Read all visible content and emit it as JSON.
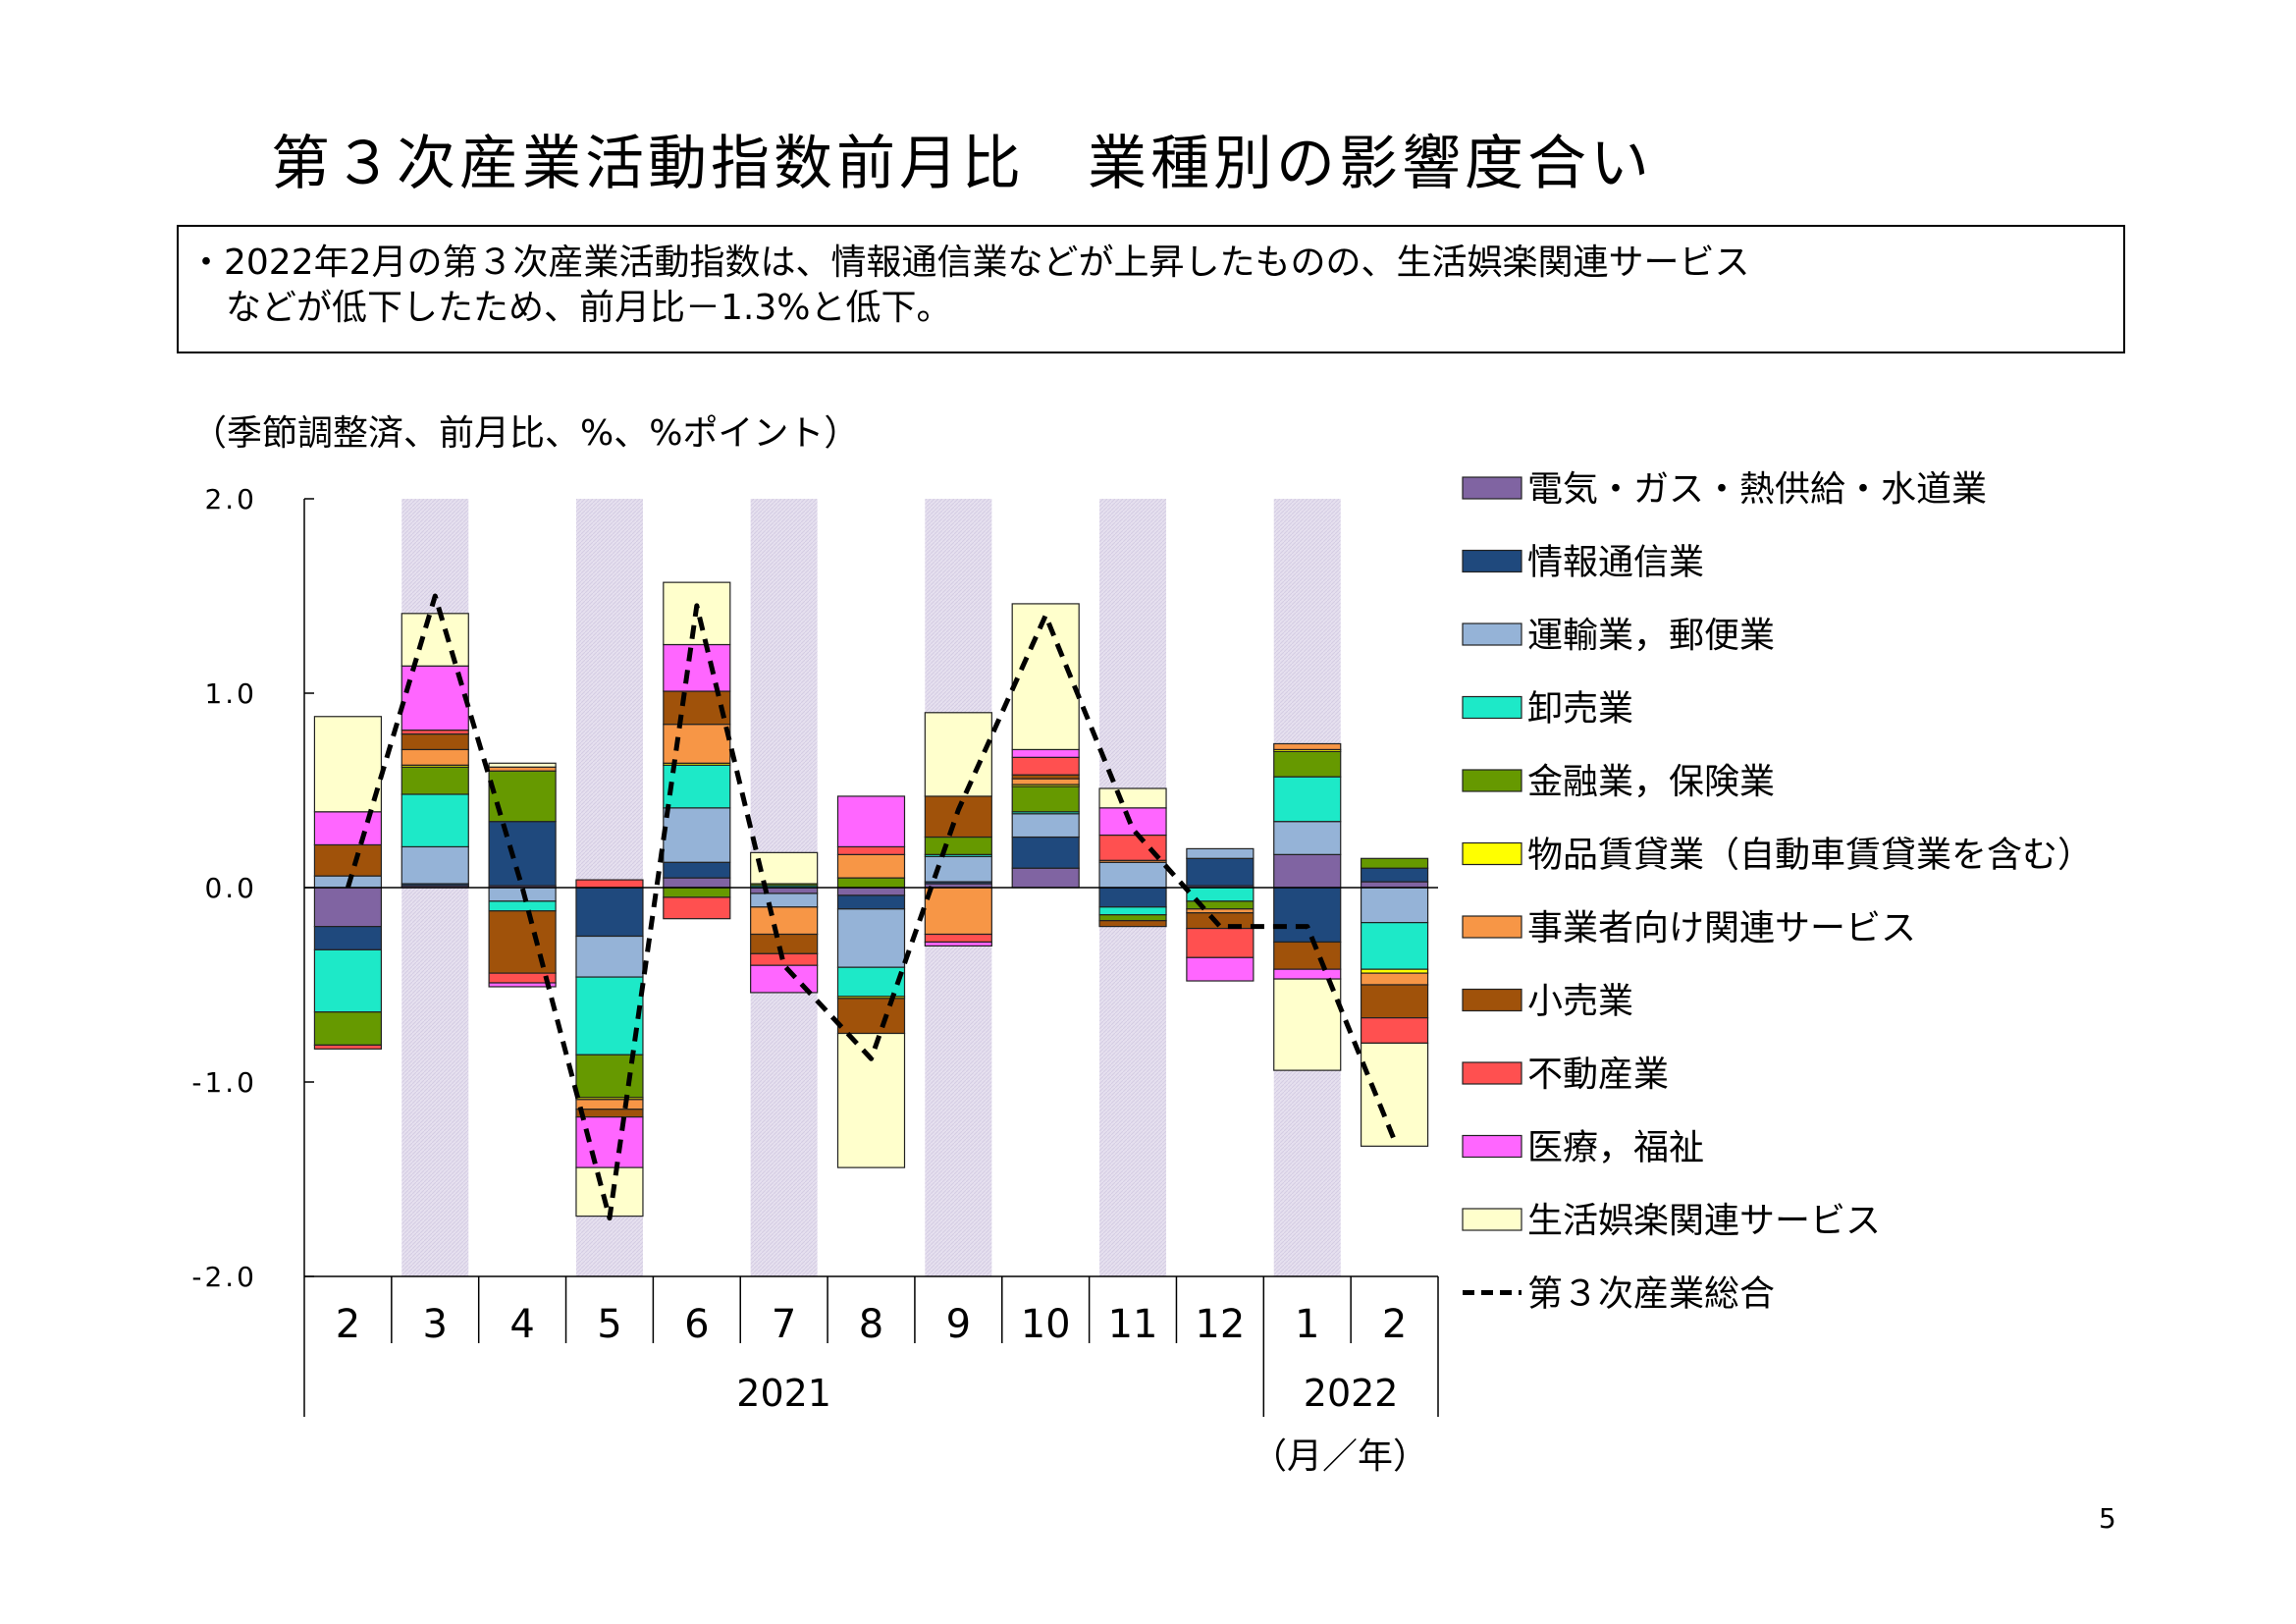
{
  "title": "第３次産業活動指数前月比　業種別の影響度合い",
  "summary": {
    "line1": "・2022年2月の第３次産業活動指数は、情報通信業などが上昇したものの、生活娯楽関連サービス",
    "line2": "などが低下したため、前月比－1.3%と低下。"
  },
  "unit_note": "（季節調整済、前月比、%、%ポイント）",
  "page_number": "5",
  "chart_data": {
    "type": "bar",
    "stacked": true,
    "categories": [
      "2",
      "3",
      "4",
      "5",
      "6",
      "7",
      "8",
      "9",
      "10",
      "11",
      "12",
      "1",
      "2"
    ],
    "year_labels": [
      {
        "label": "2021",
        "months": "2–12"
      },
      {
        "label": "2022",
        "months": "1–2"
      }
    ],
    "x_unit_label": "（月／年）",
    "ylim": [
      -2.0,
      2.0
    ],
    "yticks": [
      "2.0",
      "1.0",
      "0.0",
      "-1.0",
      "-2.0"
    ],
    "shaded_categories": [
      1,
      3,
      5,
      7,
      9,
      11
    ],
    "series": [
      {
        "name": "電気・ガス・熱供給・水道業",
        "color": "#8064a2",
        "values": [
          -0.2,
          0.01,
          0.01,
          0.0,
          0.05,
          -0.03,
          -0.04,
          0.02,
          0.1,
          0.0,
          0.01,
          0.17,
          0.03
        ]
      },
      {
        "name": "情報通信業",
        "color": "#1f497d",
        "values": [
          -0.12,
          0.01,
          0.33,
          -0.25,
          0.08,
          0.0,
          -0.07,
          0.01,
          0.16,
          -0.1,
          0.14,
          -0.28,
          0.07
        ]
      },
      {
        "name": "運輸業，郵便業",
        "color": "#95b3d7",
        "values": [
          0.06,
          0.19,
          -0.07,
          -0.21,
          0.28,
          -0.07,
          -0.3,
          0.13,
          0.12,
          0.13,
          0.05,
          0.17,
          -0.18
        ]
      },
      {
        "name": "卸売業",
        "color": "#1de9c8",
        "values": [
          -0.32,
          0.27,
          -0.05,
          -0.4,
          0.22,
          0.01,
          -0.15,
          0.01,
          0.01,
          -0.04,
          -0.07,
          0.23,
          -0.24
        ]
      },
      {
        "name": "金融業，保険業",
        "color": "#669900",
        "values": [
          -0.17,
          0.14,
          0.26,
          -0.22,
          -0.05,
          0.01,
          0.05,
          0.09,
          0.13,
          -0.03,
          -0.04,
          0.13,
          0.05
        ]
      },
      {
        "name": "物品賃貸業（自動車賃貸業を含む）",
        "color": "#ffff00",
        "values": [
          0.0,
          0.01,
          0.0,
          -0.01,
          0.01,
          0.0,
          -0.01,
          0.0,
          0.01,
          0.0,
          0.0,
          0.01,
          -0.02
        ]
      },
      {
        "name": "事業者向け関連サービス",
        "color": "#f79646",
        "values": [
          0.0,
          0.08,
          0.02,
          -0.05,
          0.2,
          -0.14,
          0.12,
          -0.24,
          0.03,
          0.01,
          -0.02,
          0.03,
          -0.06
        ]
      },
      {
        "name": "小売業",
        "color": "#a0520a",
        "values": [
          0.16,
          0.08,
          -0.32,
          -0.04,
          0.17,
          -0.1,
          -0.18,
          0.21,
          0.02,
          -0.03,
          -0.08,
          -0.14,
          -0.17
        ]
      },
      {
        "name": "不動産業",
        "color": "#ff5050",
        "values": [
          -0.02,
          0.02,
          -0.05,
          0.04,
          -0.11,
          -0.06,
          0.04,
          -0.04,
          0.09,
          0.13,
          -0.15,
          0.0,
          -0.13
        ]
      },
      {
        "name": "医療，福祉",
        "color": "#ff66ff",
        "values": [
          0.17,
          0.33,
          -0.02,
          -0.26,
          0.24,
          -0.14,
          0.26,
          -0.02,
          0.04,
          0.14,
          -0.12,
          -0.05,
          0.0
        ]
      },
      {
        "name": "生活娯楽関連サービス",
        "color": "#ffffcc",
        "values": [
          0.49,
          0.27,
          0.02,
          -0.25,
          0.32,
          0.16,
          -0.69,
          0.43,
          0.75,
          0.1,
          0.0,
          -0.47,
          -0.53
        ]
      }
    ],
    "total": {
      "name": "第３次産業総合",
      "style": "dashed",
      "color": "#000000",
      "values": [
        0.0,
        1.5,
        0.0,
        -1.7,
        1.45,
        -0.4,
        -0.88,
        0.4,
        1.4,
        0.3,
        -0.2,
        -0.2,
        -1.3
      ]
    }
  }
}
